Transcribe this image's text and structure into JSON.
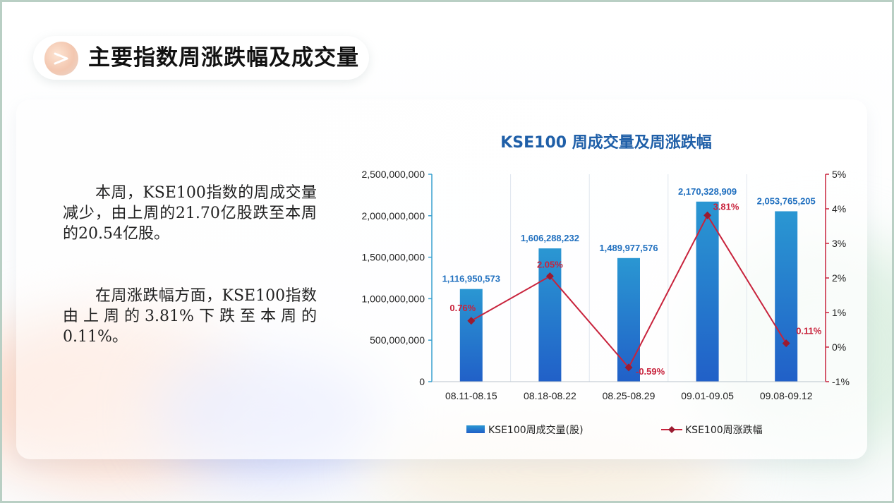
{
  "header": {
    "title": "主要指数周涨跌幅及成交量",
    "icon": "chevron-right-icon"
  },
  "text": {
    "paragraph1": "本周，KSE100指数的周成交量减少，由上周的21.70亿股跌至本周的20.54亿股。",
    "paragraph2": "在周涨跌幅方面，KSE100指数由上周的3.81%下跌至本周的0.11%。"
  },
  "colors": {
    "bar_top": "#2a97d2",
    "bar_bottom": "#2160c8",
    "line": "#c8233c",
    "title_blue": "#1f5fa8",
    "bar_label_blue": "#1f6fbf",
    "left_axis": "#3aa0cf",
    "right_axis": "#c8233c"
  },
  "chart_data": {
    "type": "bar",
    "title": "KSE100 周成交量及周涨跌幅",
    "categories": [
      "08.11-08.15",
      "08.18-08.22",
      "08.25-08.29",
      "09.01-09.05",
      "09.08-09.12"
    ],
    "series": [
      {
        "name": "KSE100周成交量(股)",
        "type": "bar",
        "axis": "left",
        "values": [
          1116950573,
          1606288232,
          1489977576,
          2170328909,
          2053765205
        ],
        "labels": [
          "1,116,950,573",
          "1,606,288,232",
          "1,489,977,576",
          "2,170,328,909",
          "2,053,765,205"
        ]
      },
      {
        "name": "KSE100周涨跌幅",
        "type": "line",
        "axis": "right",
        "values": [
          0.76,
          2.05,
          -0.59,
          3.81,
          0.11
        ],
        "labels": [
          "0.76%",
          "2.05%",
          "-0.59%",
          "3.81%",
          "0.11%"
        ]
      }
    ],
    "left_axis": {
      "ylim": [
        0,
        2500000000
      ],
      "ticks": [
        0,
        500000000,
        1000000000,
        1500000000,
        2000000000,
        2500000000
      ],
      "tick_labels": [
        "0",
        "500,000,000",
        "1,000,000,000",
        "1,500,000,000",
        "2,000,000,000",
        "2,500,000,000"
      ]
    },
    "right_axis": {
      "ylim": [
        -1,
        5
      ],
      "ticks": [
        -1,
        0,
        1,
        2,
        3,
        4,
        5
      ],
      "tick_labels": [
        "-1%",
        "0%",
        "1%",
        "2%",
        "3%",
        "4%",
        "5%"
      ]
    },
    "grid": "vertical",
    "legend_position": "bottom"
  }
}
